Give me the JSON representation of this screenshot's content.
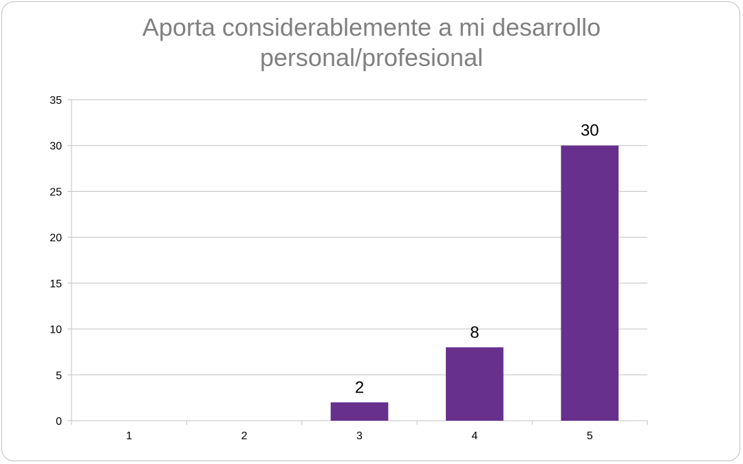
{
  "chart_data": {
    "type": "bar",
    "title_lines": [
      "Aporta considerablemente a mi desarrollo",
      "personal/profesional"
    ],
    "categories": [
      "1",
      "2",
      "3",
      "4",
      "5"
    ],
    "values": [
      0,
      0,
      2,
      8,
      30
    ],
    "data_labels": [
      "",
      "",
      "2",
      "8",
      "30"
    ],
    "ylim": [
      0,
      35
    ],
    "yticks": [
      0,
      5,
      10,
      15,
      20,
      25,
      30,
      35
    ],
    "grid": true,
    "legend": "none",
    "bar_color": "#66308c"
  }
}
